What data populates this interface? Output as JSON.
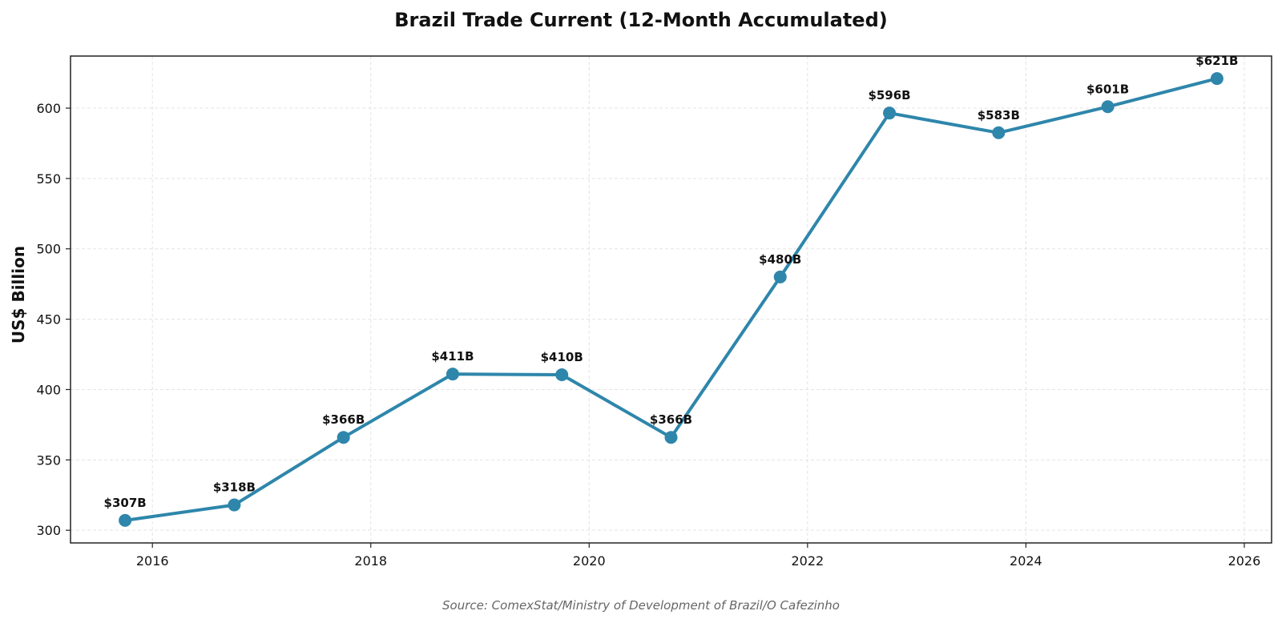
{
  "chart_data": {
    "type": "line",
    "title": "Brazil Trade Current (12-Month Accumulated)",
    "xlabel": "",
    "ylabel": "US$ Billion",
    "source": "Source: ComexStat/Ministry of Development of Brazil/O Cafezinho",
    "grid": true,
    "legend": "none",
    "color": "#2e86ab",
    "xlim": [
      2015.25,
      2026.25
    ],
    "ylim": [
      291,
      637
    ],
    "x_ticks": [
      2016,
      2018,
      2020,
      2022,
      2024,
      2026
    ],
    "x_tick_labels": [
      "2016",
      "2018",
      "2020",
      "2022",
      "2024",
      "2026"
    ],
    "y_ticks": [
      300,
      350,
      400,
      450,
      500,
      550,
      600
    ],
    "y_tick_labels": [
      "300",
      "350",
      "400",
      "450",
      "500",
      "550",
      "600"
    ],
    "series": [
      {
        "name": "Trade Current",
        "x": [
          2015.75,
          2016.75,
          2017.75,
          2018.75,
          2019.75,
          2020.75,
          2021.75,
          2022.75,
          2023.75,
          2024.75,
          2025.75
        ],
        "values": [
          307,
          318,
          366,
          411,
          410.5,
          366,
          480,
          596.5,
          582.5,
          601,
          621
        ],
        "labels": [
          "$307B",
          "$318B",
          "$366B",
          "$411B",
          "$410B",
          "$366B",
          "$480B",
          "$596B",
          "$583B",
          "$601B",
          "$621B"
        ]
      }
    ]
  }
}
